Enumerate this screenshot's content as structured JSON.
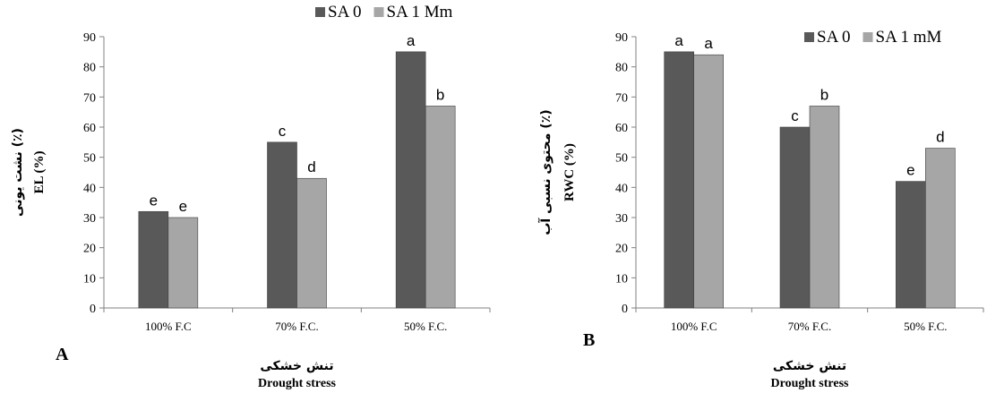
{
  "chart_data": [
    {
      "type": "bar",
      "panel_label": "A",
      "categories": [
        "100% F.C",
        "70% F.C.",
        "50% F.C."
      ],
      "series": [
        {
          "name": "SA 0",
          "color": "#595959",
          "values": [
            32,
            55,
            85
          ],
          "letters": [
            "e",
            "c",
            "a"
          ]
        },
        {
          "name": "SA 1 Mm",
          "color": "#a6a6a6",
          "values": [
            30,
            43,
            67
          ],
          "letters": [
            "e",
            "d",
            "b"
          ]
        }
      ],
      "ylabel": "EL (%)",
      "ylabel_fa": "نشت یونی (٪)",
      "xlabel": "Drought stress",
      "xlabel_fa": "تنش خشکی",
      "ylim": [
        0,
        90
      ],
      "yticks": [
        0,
        10,
        20,
        30,
        40,
        50,
        60,
        70,
        80,
        90
      ],
      "legend_position": "top-right",
      "grid": false
    },
    {
      "type": "bar",
      "panel_label": "B",
      "categories": [
        "100% F.C",
        "70% F.C.",
        "50% F.C."
      ],
      "series": [
        {
          "name": "SA 0",
          "color": "#595959",
          "values": [
            85,
            60,
            42
          ],
          "letters": [
            "a",
            "c",
            "e"
          ]
        },
        {
          "name": "SA 1 mM",
          "color": "#a6a6a6",
          "values": [
            84,
            67,
            53
          ],
          "letters": [
            "a",
            "b",
            "d"
          ]
        }
      ],
      "ylabel": "RWC (%)",
      "ylabel_fa": "محتوی نسبی آب (٪)",
      "xlabel": "Drought stress",
      "xlabel_fa": "تنش خشکی",
      "ylim": [
        0,
        90
      ],
      "yticks": [
        0,
        10,
        20,
        30,
        40,
        50,
        60,
        70,
        80,
        90
      ],
      "legend_position": "top-right",
      "grid": false
    }
  ]
}
